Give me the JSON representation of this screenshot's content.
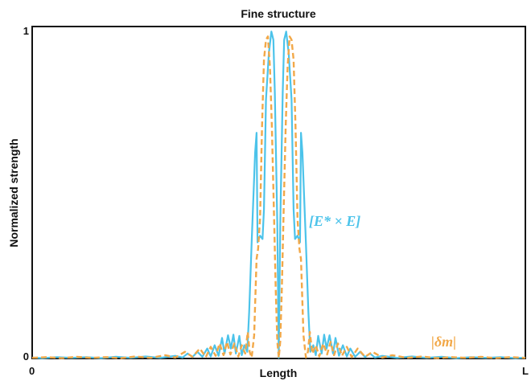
{
  "chart_data": {
    "type": "line",
    "title": "Fine structure",
    "xlabel": "Length",
    "ylabel": "Normalized strength",
    "xlim": [
      0,
      1
    ],
    "ylim": [
      0,
      1
    ],
    "x_ticks": [
      {
        "value": 0,
        "label": "0"
      },
      {
        "value": 1,
        "label": "L"
      }
    ],
    "y_ticks": [
      {
        "value": 0,
        "label": "0"
      },
      {
        "value": 1,
        "label": "1"
      }
    ],
    "grid": false,
    "series": [
      {
        "name": "[E* × E]",
        "color": "#4cc3ea",
        "style": "solid",
        "points": [
          [
            0.0,
            0.003
          ],
          [
            0.02,
            0.001
          ],
          [
            0.05,
            0.004
          ],
          [
            0.08,
            0.002
          ],
          [
            0.11,
            0.004
          ],
          [
            0.14,
            0.001
          ],
          [
            0.17,
            0.005
          ],
          [
            0.2,
            0.002
          ],
          [
            0.23,
            0.006
          ],
          [
            0.26,
            0.002
          ],
          [
            0.29,
            0.008
          ],
          [
            0.305,
            0.003
          ],
          [
            0.315,
            0.015
          ],
          [
            0.325,
            0.004
          ],
          [
            0.335,
            0.02
          ],
          [
            0.345,
            0.005
          ],
          [
            0.355,
            0.03
          ],
          [
            0.362,
            0.006
          ],
          [
            0.37,
            0.04
          ],
          [
            0.378,
            0.008
          ],
          [
            0.385,
            0.062
          ],
          [
            0.39,
            0.015
          ],
          [
            0.397,
            0.07
          ],
          [
            0.403,
            0.03
          ],
          [
            0.408,
            0.072
          ],
          [
            0.413,
            0.015
          ],
          [
            0.42,
            0.068
          ],
          [
            0.425,
            0.01
          ],
          [
            0.43,
            0.04
          ],
          [
            0.436,
            0.02
          ],
          [
            0.44,
            0.14
          ],
          [
            0.445,
            0.35
          ],
          [
            0.452,
            0.62
          ],
          [
            0.455,
            0.68
          ],
          [
            0.457,
            0.35
          ],
          [
            0.462,
            0.37
          ],
          [
            0.467,
            0.36
          ],
          [
            0.47,
            0.45
          ],
          [
            0.474,
            0.78
          ],
          [
            0.48,
            0.92
          ],
          [
            0.485,
            0.985
          ],
          [
            0.489,
            0.96
          ],
          [
            0.492,
            0.8
          ],
          [
            0.497,
            0.4
          ],
          [
            0.5,
            0.002
          ],
          [
            0.503,
            0.4
          ],
          [
            0.508,
            0.8
          ],
          [
            0.511,
            0.96
          ],
          [
            0.515,
            0.985
          ],
          [
            0.52,
            0.92
          ],
          [
            0.526,
            0.78
          ],
          [
            0.53,
            0.45
          ],
          [
            0.533,
            0.36
          ],
          [
            0.538,
            0.37
          ],
          [
            0.543,
            0.35
          ],
          [
            0.545,
            0.68
          ],
          [
            0.548,
            0.62
          ],
          [
            0.555,
            0.35
          ],
          [
            0.56,
            0.14
          ],
          [
            0.564,
            0.02
          ],
          [
            0.57,
            0.04
          ],
          [
            0.575,
            0.01
          ],
          [
            0.58,
            0.068
          ],
          [
            0.587,
            0.015
          ],
          [
            0.592,
            0.072
          ],
          [
            0.597,
            0.03
          ],
          [
            0.603,
            0.07
          ],
          [
            0.61,
            0.015
          ],
          [
            0.615,
            0.062
          ],
          [
            0.622,
            0.008
          ],
          [
            0.63,
            0.04
          ],
          [
            0.638,
            0.006
          ],
          [
            0.645,
            0.03
          ],
          [
            0.655,
            0.005
          ],
          [
            0.665,
            0.02
          ],
          [
            0.675,
            0.004
          ],
          [
            0.685,
            0.015
          ],
          [
            0.695,
            0.003
          ],
          [
            0.71,
            0.008
          ],
          [
            0.74,
            0.002
          ],
          [
            0.77,
            0.006
          ],
          [
            0.8,
            0.002
          ],
          [
            0.83,
            0.005
          ],
          [
            0.86,
            0.001
          ],
          [
            0.89,
            0.004
          ],
          [
            0.92,
            0.002
          ],
          [
            0.95,
            0.004
          ],
          [
            0.98,
            0.001
          ],
          [
            1.0,
            0.003
          ]
        ]
      },
      {
        "name": "|δm|",
        "color": "#f2a848",
        "style": "dashed",
        "points": [
          [
            0.0,
            0.002
          ],
          [
            0.03,
            0.004
          ],
          [
            0.06,
            0.001
          ],
          [
            0.09,
            0.005
          ],
          [
            0.12,
            0.002
          ],
          [
            0.15,
            0.004
          ],
          [
            0.18,
            0.001
          ],
          [
            0.21,
            0.006
          ],
          [
            0.24,
            0.002
          ],
          [
            0.27,
            0.01
          ],
          [
            0.29,
            0.003
          ],
          [
            0.31,
            0.02
          ],
          [
            0.325,
            0.005
          ],
          [
            0.34,
            0.03
          ],
          [
            0.352,
            0.004
          ],
          [
            0.362,
            0.035
          ],
          [
            0.372,
            0.008
          ],
          [
            0.38,
            0.045
          ],
          [
            0.388,
            0.01
          ],
          [
            0.395,
            0.05
          ],
          [
            0.402,
            0.012
          ],
          [
            0.41,
            0.045
          ],
          [
            0.418,
            0.006
          ],
          [
            0.425,
            0.04
          ],
          [
            0.432,
            0.015
          ],
          [
            0.437,
            0.08
          ],
          [
            0.441,
            0.02
          ],
          [
            0.445,
            0.003
          ],
          [
            0.45,
            0.07
          ],
          [
            0.455,
            0.3
          ],
          [
            0.458,
            0.33
          ],
          [
            0.462,
            0.42
          ],
          [
            0.466,
            0.7
          ],
          [
            0.47,
            0.9
          ],
          [
            0.474,
            0.96
          ],
          [
            0.478,
            0.97
          ],
          [
            0.482,
            0.88
          ],
          [
            0.486,
            0.7
          ],
          [
            0.49,
            0.45
          ],
          [
            0.494,
            0.2
          ],
          [
            0.497,
            0.05
          ],
          [
            0.5,
            0.002
          ],
          [
            0.503,
            0.05
          ],
          [
            0.506,
            0.2
          ],
          [
            0.51,
            0.45
          ],
          [
            0.514,
            0.7
          ],
          [
            0.518,
            0.88
          ],
          [
            0.522,
            0.97
          ],
          [
            0.526,
            0.96
          ],
          [
            0.53,
            0.9
          ],
          [
            0.534,
            0.7
          ],
          [
            0.538,
            0.42
          ],
          [
            0.542,
            0.33
          ],
          [
            0.545,
            0.3
          ],
          [
            0.55,
            0.07
          ],
          [
            0.555,
            0.003
          ],
          [
            0.559,
            0.02
          ],
          [
            0.563,
            0.08
          ],
          [
            0.568,
            0.015
          ],
          [
            0.575,
            0.04
          ],
          [
            0.582,
            0.006
          ],
          [
            0.59,
            0.045
          ],
          [
            0.598,
            0.012
          ],
          [
            0.605,
            0.05
          ],
          [
            0.612,
            0.01
          ],
          [
            0.62,
            0.045
          ],
          [
            0.628,
            0.008
          ],
          [
            0.638,
            0.035
          ],
          [
            0.648,
            0.004
          ],
          [
            0.66,
            0.03
          ],
          [
            0.675,
            0.005
          ],
          [
            0.69,
            0.02
          ],
          [
            0.71,
            0.003
          ],
          [
            0.73,
            0.01
          ],
          [
            0.76,
            0.002
          ],
          [
            0.79,
            0.006
          ],
          [
            0.82,
            0.001
          ],
          [
            0.85,
            0.004
          ],
          [
            0.88,
            0.002
          ],
          [
            0.91,
            0.005
          ],
          [
            0.94,
            0.001
          ],
          [
            0.97,
            0.004
          ],
          [
            1.0,
            0.002
          ]
        ]
      }
    ]
  }
}
